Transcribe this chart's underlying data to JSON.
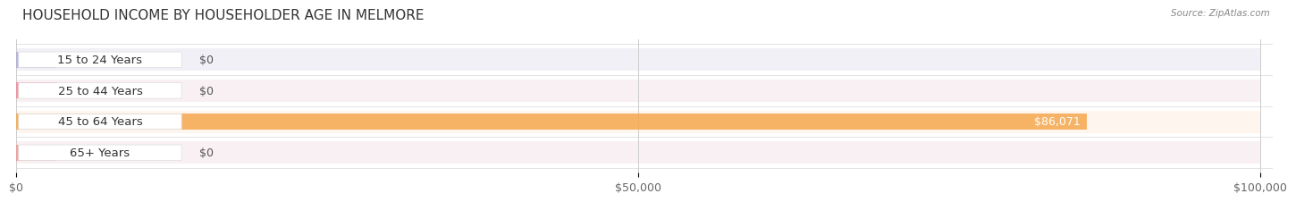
{
  "title": "HOUSEHOLD INCOME BY HOUSEHOLDER AGE IN MELMORE",
  "source": "Source: ZipAtlas.com",
  "categories": [
    "15 to 24 Years",
    "25 to 44 Years",
    "45 to 64 Years",
    "65+ Years"
  ],
  "values": [
    0,
    0,
    86071,
    0
  ],
  "bar_colors": [
    "#a8a8d8",
    "#f08090",
    "#f5a84e",
    "#f09090"
  ],
  "row_bg_colors": [
    "#eeeeee",
    "#eeeeee",
    "#eeeeee",
    "#eeeeee"
  ],
  "xlim": [
    0,
    100000
  ],
  "xticks": [
    0,
    50000,
    100000
  ],
  "xtick_labels": [
    "$0",
    "$50,000",
    "$100,000"
  ],
  "value_label_color_inside": "#ffffff",
  "value_label_color_outside": "#555555",
  "title_fontsize": 11,
  "tick_fontsize": 9,
  "bar_label_fontsize": 9,
  "category_fontsize": 9.5,
  "background_color": "#ffffff"
}
